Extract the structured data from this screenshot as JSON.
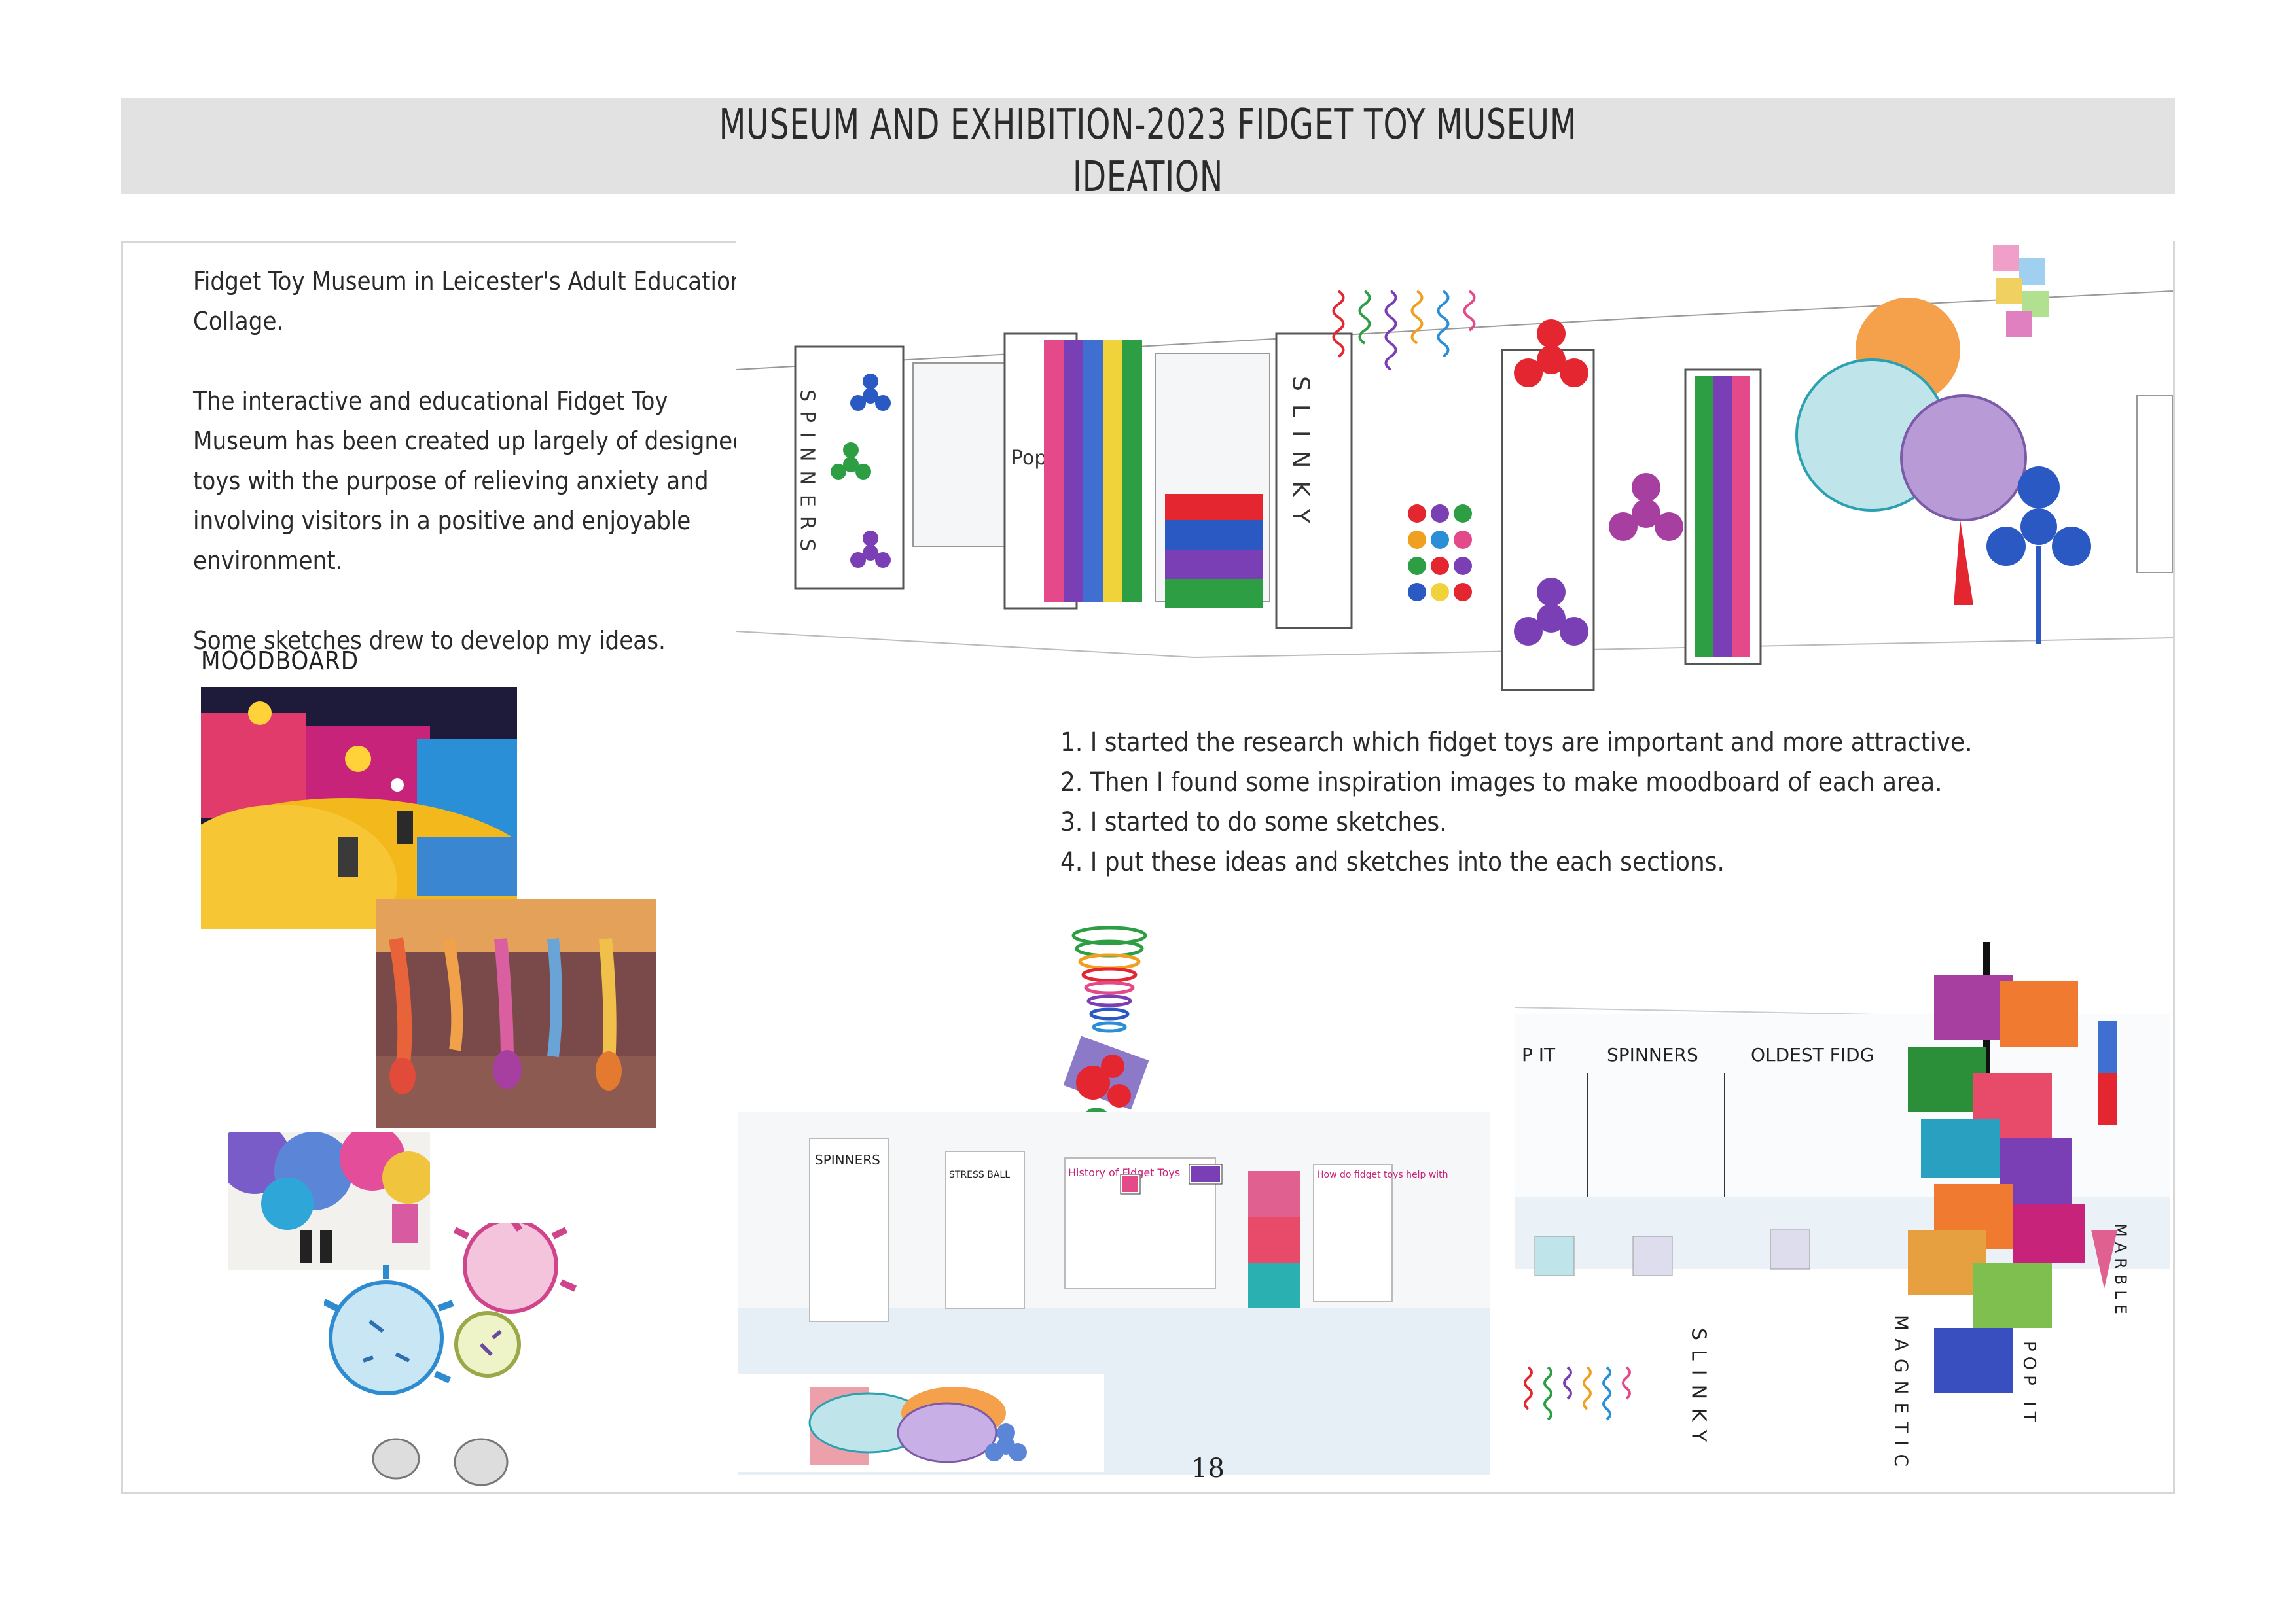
{
  "header": {
    "title_line1": "MUSEUM AND  EXHIBITION-2023 FIDGET TOY MUSEUM",
    "title_line2": "IDEATION"
  },
  "intro": {
    "paragraph1": "Fidget Toy Museum in Leicester's Adult Education Collage.",
    "paragraph2": "The interactive and educational Fidget Toy Museum has been created up largely of designed toys with the purpose of relieving anxiety and involving visitors in a positive and enjoyable environment.",
    "paragraph3": "Some sketches drew to develop my ideas."
  },
  "moodboard": {
    "label": "MOODBOARD"
  },
  "steps": [
    "1. I started the research which fidget toys are important and more attractive.",
    "2. Then I found some inspiration images to make moodboard of each area.",
    "3. I started to do some sketches.",
    "4. I put these ideas and sketches into the each sections."
  ],
  "sketch_labels": {
    "spinners": "SPINNERS",
    "pop_it": "Pop It",
    "slinky": "SLINKY",
    "magnetic": "MAGNETIC",
    "pop_it_vertical": "POP IT",
    "marble": "MARBLE"
  },
  "render_panels": {
    "spinners": "SPINNERS",
    "stress_ball": "STRESS BALL",
    "history": "History of Fidget Toys",
    "how_help": "How do fidget toys help with",
    "pop_it": "P IT",
    "spinners_right": "SPINNERS",
    "oldest": "OLDEST FIDG"
  },
  "page_number": "18",
  "colors": {
    "header_bg": "#e2e2e2",
    "frame_border": "#d7d7d7",
    "spinner_red": "#e32630",
    "spinner_purple": "#7b3fb5",
    "spinner_blue": "#2b59c3",
    "spinner_green": "#2e9e44"
  }
}
